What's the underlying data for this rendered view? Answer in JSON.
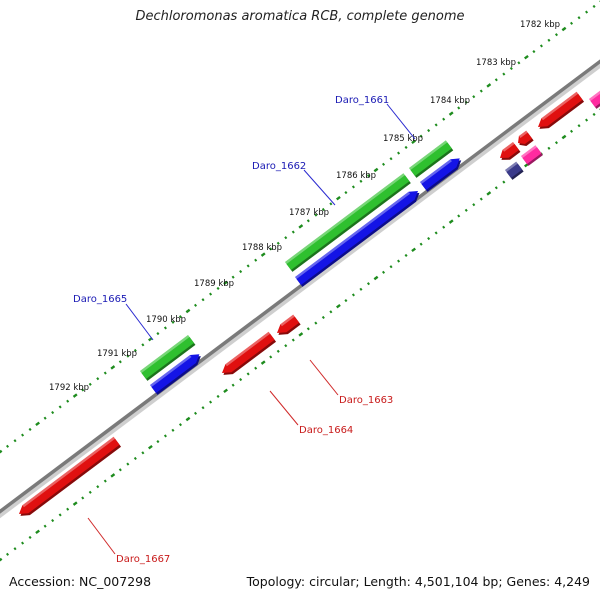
{
  "title": "Dechloromonas aromatica RCB, complete genome",
  "footer": {
    "accession": "Accession: NC_007298",
    "summary": "Topology: circular; Length: 4,501,104 bp; Genes: 4,249"
  },
  "kbp_labels": [
    "1782 kbp",
    "1783 kbp",
    "1784 kbp",
    "1785 kbp",
    "1786 kbp",
    "1787 kbp",
    "1788 kbp",
    "1789 kbp",
    "1790 kbp",
    "1791 kbp",
    "1792 kbp"
  ],
  "gene_labels": {
    "daro_1661": "Daro_1661",
    "daro_1662": "Daro_1662",
    "daro_1665": "Daro_1665",
    "daro_1663": "Daro_1663",
    "daro_1664": "Daro_1664",
    "daro_1667": "Daro_1667"
  },
  "colors": {
    "backbone": "#777777",
    "tick": "#1e8c1e",
    "green_gene": "#2fc02f",
    "blue_gene": "#1414e6",
    "red_gene": "#e01010",
    "pink_gene": "#ff2aa0",
    "purple_gene": "#3a3a8a",
    "label_blue": "#1a1ab4",
    "label_red": "#c81a1a"
  }
}
